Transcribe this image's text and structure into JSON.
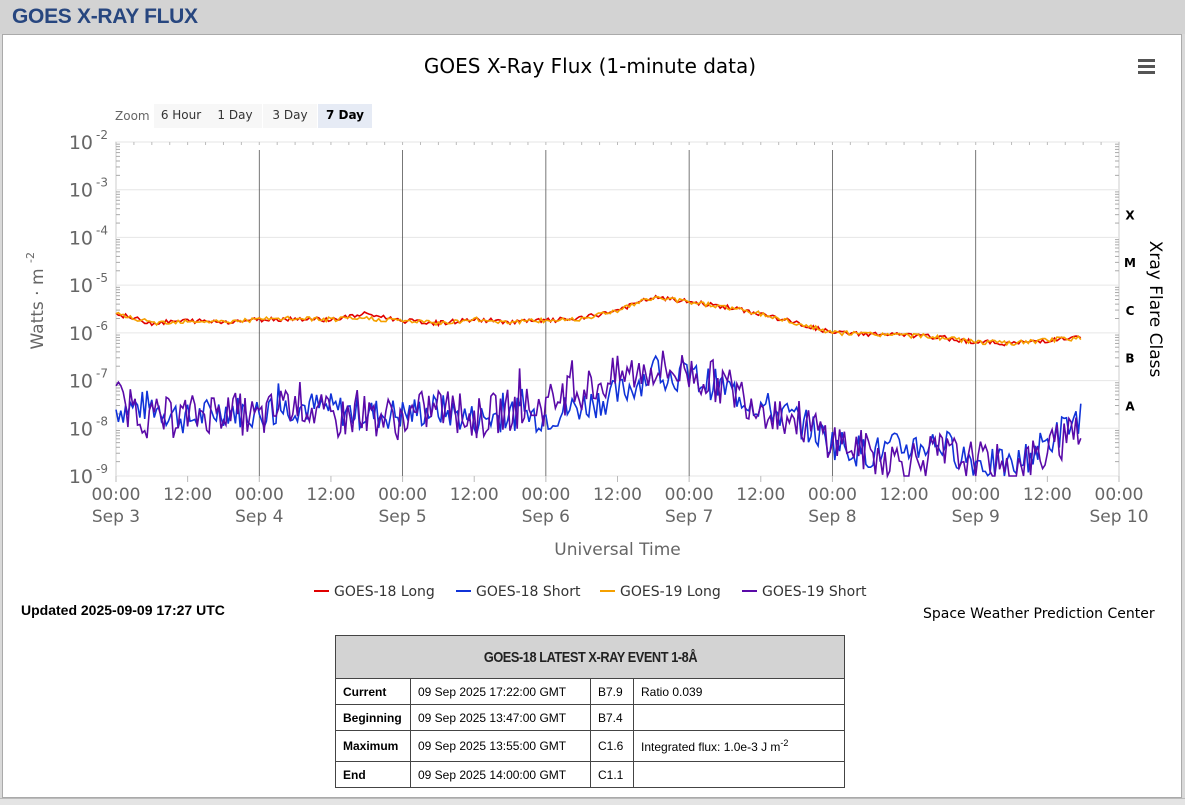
{
  "header": {
    "title": "GOES X-RAY FLUX"
  },
  "chart": {
    "title": "GOES X-Ray Flux (1-minute data)",
    "zoom_label": "Zoom",
    "zoom_buttons": [
      "6 Hour",
      "1 Day",
      "3 Day",
      "7 Day"
    ],
    "zoom_active": "7 Day",
    "y_tick_labels": [
      "10",
      "10",
      "10",
      "10",
      "10",
      "10",
      "10",
      "10"
    ],
    "y_tick_exps": [
      "-2",
      "-3",
      "-4",
      "-5",
      "-6",
      "-7",
      "-8",
      "-9"
    ],
    "ylabel": "Watts · m",
    "ylabel_exp": "-2",
    "y2label": "Xray Flare Class",
    "flare_classes": [
      "X",
      "M",
      "C",
      "B",
      "A"
    ],
    "xlabel": "Universal Time",
    "x_tick_times": [
      "00:00",
      "12:00",
      "00:00",
      "12:00",
      "00:00",
      "12:00",
      "00:00",
      "12:00",
      "00:00",
      "12:00",
      "00:00",
      "12:00",
      "00:00",
      "12:00",
      "00:00"
    ],
    "x_tick_dates": [
      "Sep 3",
      "",
      "Sep 4",
      "",
      "Sep 5",
      "",
      "Sep 6",
      "",
      "Sep 7",
      "",
      "Sep 8",
      "",
      "Sep 9",
      "",
      "Sep 10"
    ],
    "legend": [
      "GOES-18 Long",
      "GOES-18 Short",
      "GOES-19 Long",
      "GOES-19 Short"
    ],
    "colors": {
      "g18_long": "#e00000",
      "g18_short": "#1033d8",
      "g19_long": "#f5a000",
      "g19_short": "#5a0aa8"
    }
  },
  "chart_data": {
    "type": "line",
    "title": "GOES X-Ray Flux (1-minute data)",
    "xlabel": "Universal Time",
    "ylabel": "Watts · m-2",
    "y_scale": "log",
    "ylim": [
      1e-09,
      0.01
    ],
    "xlim": [
      "2025-09-03 00:00",
      "2025-09-10 00:00"
    ],
    "x_hours": [
      0,
      6,
      12,
      18,
      24,
      30,
      36,
      42,
      48,
      54,
      60,
      66,
      72,
      78,
      84,
      90,
      96,
      102,
      108,
      114,
      120,
      126,
      132,
      138,
      144,
      150,
      156,
      162
    ],
    "series": [
      {
        "name": "GOES-18 Long",
        "values": [
          2.5e-06,
          1.6e-06,
          1.8e-06,
          1.7e-06,
          1.9e-06,
          2e-06,
          1.9e-06,
          2.5e-06,
          1.8e-06,
          1.6e-06,
          1.9e-06,
          1.7e-06,
          1.8e-06,
          2e-06,
          3e-06,
          5.5e-06,
          4.5e-06,
          3.5e-06,
          2.5e-06,
          1.6e-06,
          1e-06,
          9.5e-07,
          9e-07,
          8e-07,
          6.5e-07,
          6e-07,
          7e-07,
          8e-07
        ]
      },
      {
        "name": "GOES-18 Short",
        "values": [
          2.5e-08,
          3e-08,
          1.5e-08,
          2.5e-08,
          2e-08,
          3e-08,
          2.5e-08,
          2e-08,
          2e-08,
          2.5e-08,
          1.5e-08,
          2e-08,
          1.8e-08,
          3e-08,
          5e-08,
          1.5e-07,
          1.2e-07,
          7e-08,
          3e-08,
          1.5e-08,
          5e-09,
          3e-09,
          4e-09,
          5e-09,
          2e-09,
          1.5e-09,
          5e-09,
          2e-08
        ]
      },
      {
        "name": "GOES-19 Long",
        "values": [
          2.5e-06,
          1.6e-06,
          1.8e-06,
          1.7e-06,
          1.9e-06,
          2e-06,
          1.9e-06,
          2e-06,
          1.8e-06,
          1.6e-06,
          1.9e-06,
          1.7e-06,
          1.8e-06,
          2e-06,
          3e-06,
          5.5e-06,
          4.5e-06,
          3.5e-06,
          2.5e-06,
          1.6e-06,
          1e-06,
          9.5e-07,
          9e-07,
          8e-07,
          6.5e-07,
          6e-07,
          7e-07,
          8e-07
        ]
      },
      {
        "name": "GOES-19 Short",
        "values": [
          4e-08,
          1.5e-08,
          1.8e-08,
          2.5e-08,
          1.5e-08,
          4e-08,
          1.5e-08,
          2e-08,
          1.5e-08,
          3e-08,
          1.5e-08,
          2.5e-08,
          3e-08,
          6e-08,
          1.2e-07,
          1.8e-07,
          1.5e-07,
          8e-08,
          3e-08,
          1.5e-08,
          6e-09,
          3e-09,
          2e-09,
          3e-09,
          2e-09,
          1.5e-09,
          3e-09,
          1.5e-08
        ]
      }
    ]
  },
  "footer": {
    "updated": "Updated 2025-09-09 17:27 UTC",
    "credit": "Space Weather Prediction Center"
  },
  "event_table": {
    "title": "GOES-18 LATEST X-RAY EVENT 1-8Å",
    "rows": [
      {
        "label": "Current",
        "time": "09 Sep 2025 17:22:00 GMT",
        "class": "B7.9",
        "extra": "Ratio 0.039"
      },
      {
        "label": "Beginning",
        "time": "09 Sep 2025 13:47:00 GMT",
        "class": "B7.4",
        "extra": ""
      },
      {
        "label": "Maximum",
        "time": "09 Sep 2025 13:55:00 GMT",
        "class": "C1.6",
        "extra": "Integrated flux: 1.0e-3 J m",
        "extra_exp": "-2"
      },
      {
        "label": "End",
        "time": "09 Sep 2025 14:00:00 GMT",
        "class": "C1.1",
        "extra": ""
      }
    ]
  }
}
